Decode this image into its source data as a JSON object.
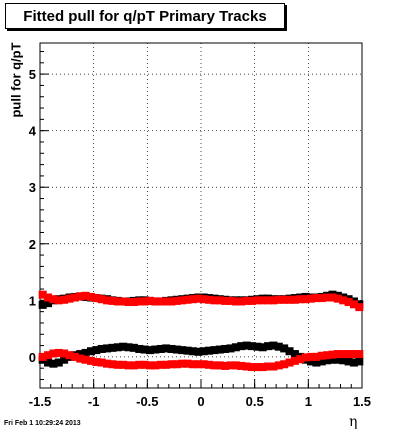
{
  "header": {
    "title": "Fitted pull for q/pT  Primary Tracks"
  },
  "footer": {
    "timestamp": "Fri Feb  1 10:29:24 2013"
  },
  "chart_data": {
    "type": "scatter",
    "title": "Fitted pull for q/pT  Primary Tracks",
    "xlabel": "η",
    "ylabel": "pull for q/pT",
    "xlim": [
      -1.5,
      1.5
    ],
    "ylim": [
      -0.55,
      5.55
    ],
    "x_ticks": [
      -1.5,
      -1,
      -0.5,
      0,
      0.5,
      1,
      1.5
    ],
    "x_tick_labels": [
      "-1.5",
      "-1",
      "-0.5",
      "0",
      "0.5",
      "1",
      "1.5"
    ],
    "y_ticks": [
      0,
      1,
      2,
      3,
      4,
      5
    ],
    "y_tick_labels": [
      "0",
      "1",
      "2",
      "3",
      "4",
      "5"
    ],
    "grid": true,
    "colors": {
      "black_series": "#000000",
      "red_series": "#ff0000"
    },
    "series": [
      {
        "color": "#000000",
        "x": [
          -1.475,
          -1.425,
          -1.375,
          -1.325,
          -1.275,
          -1.225,
          -1.175,
          -1.125,
          -1.075,
          -1.025,
          -0.975,
          -0.925,
          -0.875,
          -0.825,
          -0.775,
          -0.725,
          -0.675,
          -0.625,
          -0.575,
          -0.525,
          -0.475,
          -0.425,
          -0.375,
          -0.325,
          -0.275,
          -0.225,
          -0.175,
          -0.125,
          -0.075,
          -0.025,
          0.025,
          0.075,
          0.125,
          0.175,
          0.225,
          0.275,
          0.325,
          0.375,
          0.425,
          0.475,
          0.525,
          0.575,
          0.625,
          0.675,
          0.725,
          0.775,
          0.825,
          0.875,
          0.925,
          0.975,
          1.025,
          1.075,
          1.125,
          1.175,
          1.225,
          1.275,
          1.325,
          1.375,
          1.425,
          1.475
        ],
        "y": [
          0.92,
          0.95,
          1.0,
          1.02,
          1.03,
          1.05,
          1.06,
          1.07,
          1.06,
          1.05,
          1.04,
          1.03,
          1.02,
          1.0,
          0.99,
          0.98,
          0.98,
          0.99,
          1.0,
          1.0,
          0.99,
          0.98,
          0.98,
          0.99,
          1.0,
          1.01,
          1.02,
          1.03,
          1.04,
          1.05,
          1.05,
          1.04,
          1.03,
          1.02,
          1.01,
          1.0,
          1.0,
          1.0,
          1.0,
          1.01,
          1.02,
          1.03,
          1.03,
          1.02,
          1.02,
          1.02,
          1.03,
          1.04,
          1.05,
          1.06,
          1.05,
          1.05,
          1.06,
          1.08,
          1.1,
          1.08,
          1.05,
          1.02,
          0.98,
          0.93
        ]
      },
      {
        "color": "#000000",
        "x": [
          -1.475,
          -1.425,
          -1.375,
          -1.325,
          -1.275,
          -1.225,
          -1.175,
          -1.125,
          -1.075,
          -1.025,
          -0.975,
          -0.925,
          -0.875,
          -0.825,
          -0.775,
          -0.725,
          -0.675,
          -0.625,
          -0.575,
          -0.525,
          -0.475,
          -0.425,
          -0.375,
          -0.325,
          -0.275,
          -0.225,
          -0.175,
          -0.125,
          -0.075,
          -0.025,
          0.025,
          0.075,
          0.125,
          0.175,
          0.225,
          0.275,
          0.325,
          0.375,
          0.425,
          0.475,
          0.525,
          0.575,
          0.625,
          0.675,
          0.725,
          0.775,
          0.825,
          0.875,
          0.925,
          0.975,
          1.025,
          1.075,
          1.125,
          1.175,
          1.225,
          1.275,
          1.325,
          1.375,
          1.425,
          1.475
        ],
        "y": [
          -0.05,
          -0.1,
          -0.12,
          -0.1,
          -0.05,
          0.0,
          0.03,
          0.05,
          0.07,
          0.1,
          0.12,
          0.14,
          0.15,
          0.16,
          0.17,
          0.18,
          0.17,
          0.16,
          0.14,
          0.13,
          0.12,
          0.13,
          0.14,
          0.15,
          0.14,
          0.13,
          0.12,
          0.11,
          0.1,
          0.09,
          0.1,
          0.11,
          0.12,
          0.13,
          0.14,
          0.15,
          0.17,
          0.19,
          0.2,
          0.19,
          0.18,
          0.17,
          0.19,
          0.2,
          0.18,
          0.15,
          0.1,
          0.05,
          0.0,
          -0.05,
          -0.08,
          -0.1,
          -0.08,
          -0.06,
          -0.05,
          -0.05,
          -0.06,
          -0.08,
          -0.1,
          -0.08
        ]
      },
      {
        "color": "#ff0000",
        "x": [
          -1.475,
          -1.425,
          -1.375,
          -1.325,
          -1.275,
          -1.225,
          -1.175,
          -1.125,
          -1.075,
          -1.025,
          -0.975,
          -0.925,
          -0.875,
          -0.825,
          -0.775,
          -0.725,
          -0.675,
          -0.625,
          -0.575,
          -0.525,
          -0.475,
          -0.425,
          -0.375,
          -0.325,
          -0.275,
          -0.225,
          -0.175,
          -0.125,
          -0.075,
          -0.025,
          0.025,
          0.075,
          0.125,
          0.175,
          0.225,
          0.275,
          0.325,
          0.375,
          0.425,
          0.475,
          0.525,
          0.575,
          0.625,
          0.675,
          0.725,
          0.775,
          0.825,
          0.875,
          0.925,
          0.975,
          1.025,
          1.075,
          1.125,
          1.175,
          1.225,
          1.275,
          1.325,
          1.375,
          1.425,
          1.475
        ],
        "y": [
          1.1,
          1.05,
          1.02,
          1.0,
          1.01,
          1.03,
          1.05,
          1.07,
          1.08,
          1.06,
          1.04,
          1.02,
          1.0,
          0.99,
          0.98,
          0.98,
          0.97,
          0.97,
          0.98,
          0.98,
          0.99,
          0.98,
          0.98,
          0.98,
          0.98,
          0.99,
          1.0,
          1.01,
          1.02,
          1.03,
          1.02,
          1.01,
          1.0,
          1.0,
          0.99,
          0.99,
          0.98,
          0.98,
          0.99,
          0.99,
          1.0,
          1.0,
          1.0,
          1.0,
          1.01,
          1.01,
          1.01,
          1.01,
          1.02,
          1.02,
          1.03,
          1.04,
          1.04,
          1.05,
          1.05,
          1.03,
          1.0,
          0.97,
          0.93,
          0.88
        ]
      },
      {
        "color": "#ff0000",
        "x": [
          -1.475,
          -1.425,
          -1.375,
          -1.325,
          -1.275,
          -1.225,
          -1.175,
          -1.125,
          -1.075,
          -1.025,
          -0.975,
          -0.925,
          -0.875,
          -0.825,
          -0.775,
          -0.725,
          -0.675,
          -0.625,
          -0.575,
          -0.525,
          -0.475,
          -0.425,
          -0.375,
          -0.325,
          -0.275,
          -0.225,
          -0.175,
          -0.125,
          -0.075,
          -0.025,
          0.025,
          0.075,
          0.125,
          0.175,
          0.225,
          0.275,
          0.325,
          0.375,
          0.425,
          0.475,
          0.525,
          0.575,
          0.625,
          0.675,
          0.725,
          0.775,
          0.825,
          0.875,
          0.925,
          0.975,
          1.025,
          1.075,
          1.125,
          1.175,
          1.225,
          1.275,
          1.325,
          1.375,
          1.425,
          1.475
        ],
        "y": [
          0.0,
          0.03,
          0.06,
          0.07,
          0.06,
          0.03,
          0.0,
          -0.03,
          -0.05,
          -0.07,
          -0.09,
          -0.1,
          -0.12,
          -0.13,
          -0.14,
          -0.14,
          -0.15,
          -0.15,
          -0.14,
          -0.14,
          -0.15,
          -0.15,
          -0.14,
          -0.14,
          -0.13,
          -0.13,
          -0.12,
          -0.12,
          -0.13,
          -0.13,
          -0.13,
          -0.14,
          -0.15,
          -0.15,
          -0.16,
          -0.15,
          -0.15,
          -0.16,
          -0.17,
          -0.18,
          -0.18,
          -0.18,
          -0.17,
          -0.17,
          -0.15,
          -0.13,
          -0.1,
          -0.07,
          -0.04,
          -0.01,
          0.0,
          0.0,
          0.02,
          0.03,
          0.04,
          0.05,
          0.05,
          0.05,
          0.05,
          0.05
        ]
      }
    ]
  }
}
